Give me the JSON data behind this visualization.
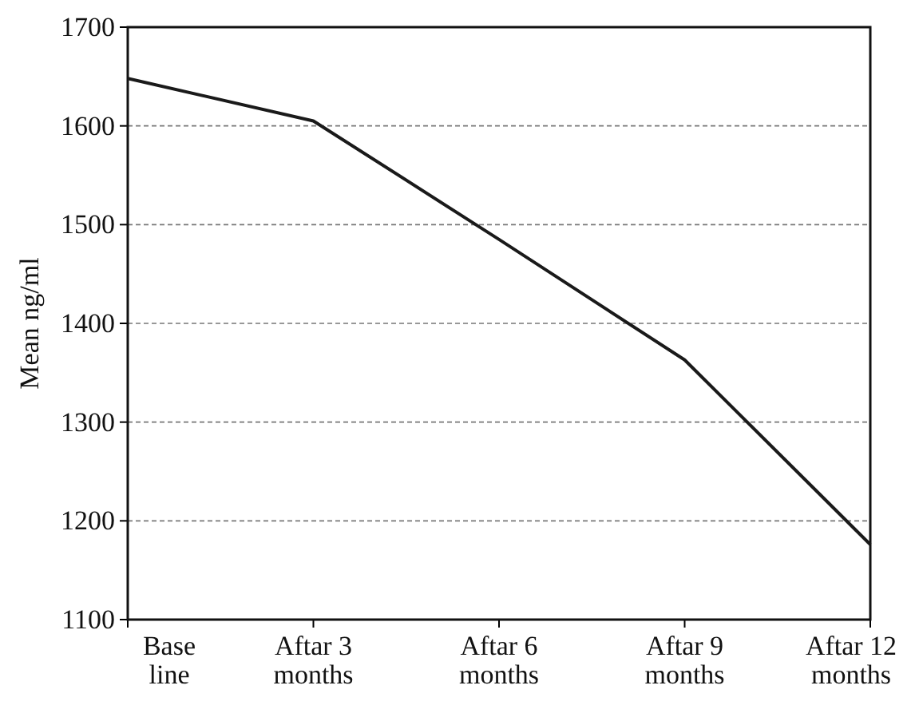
{
  "chart_data": {
    "type": "line",
    "ylabel": "Mean ng/ml",
    "categories": [
      "Base line",
      "Aftar 3 months",
      "Aftar 6 months",
      "Aftar 9 months",
      "Aftar 12 months"
    ],
    "series": [
      {
        "color": "#1a1a1a",
        "values": [
          1648,
          1605,
          1485,
          1363,
          1176
        ]
      }
    ],
    "ylim": [
      1100,
      1700
    ],
    "yticks": [
      1100,
      1200,
      1300,
      1400,
      1500,
      1600,
      1700
    ],
    "grid": "y",
    "line_style": "solid",
    "marker": "none"
  }
}
